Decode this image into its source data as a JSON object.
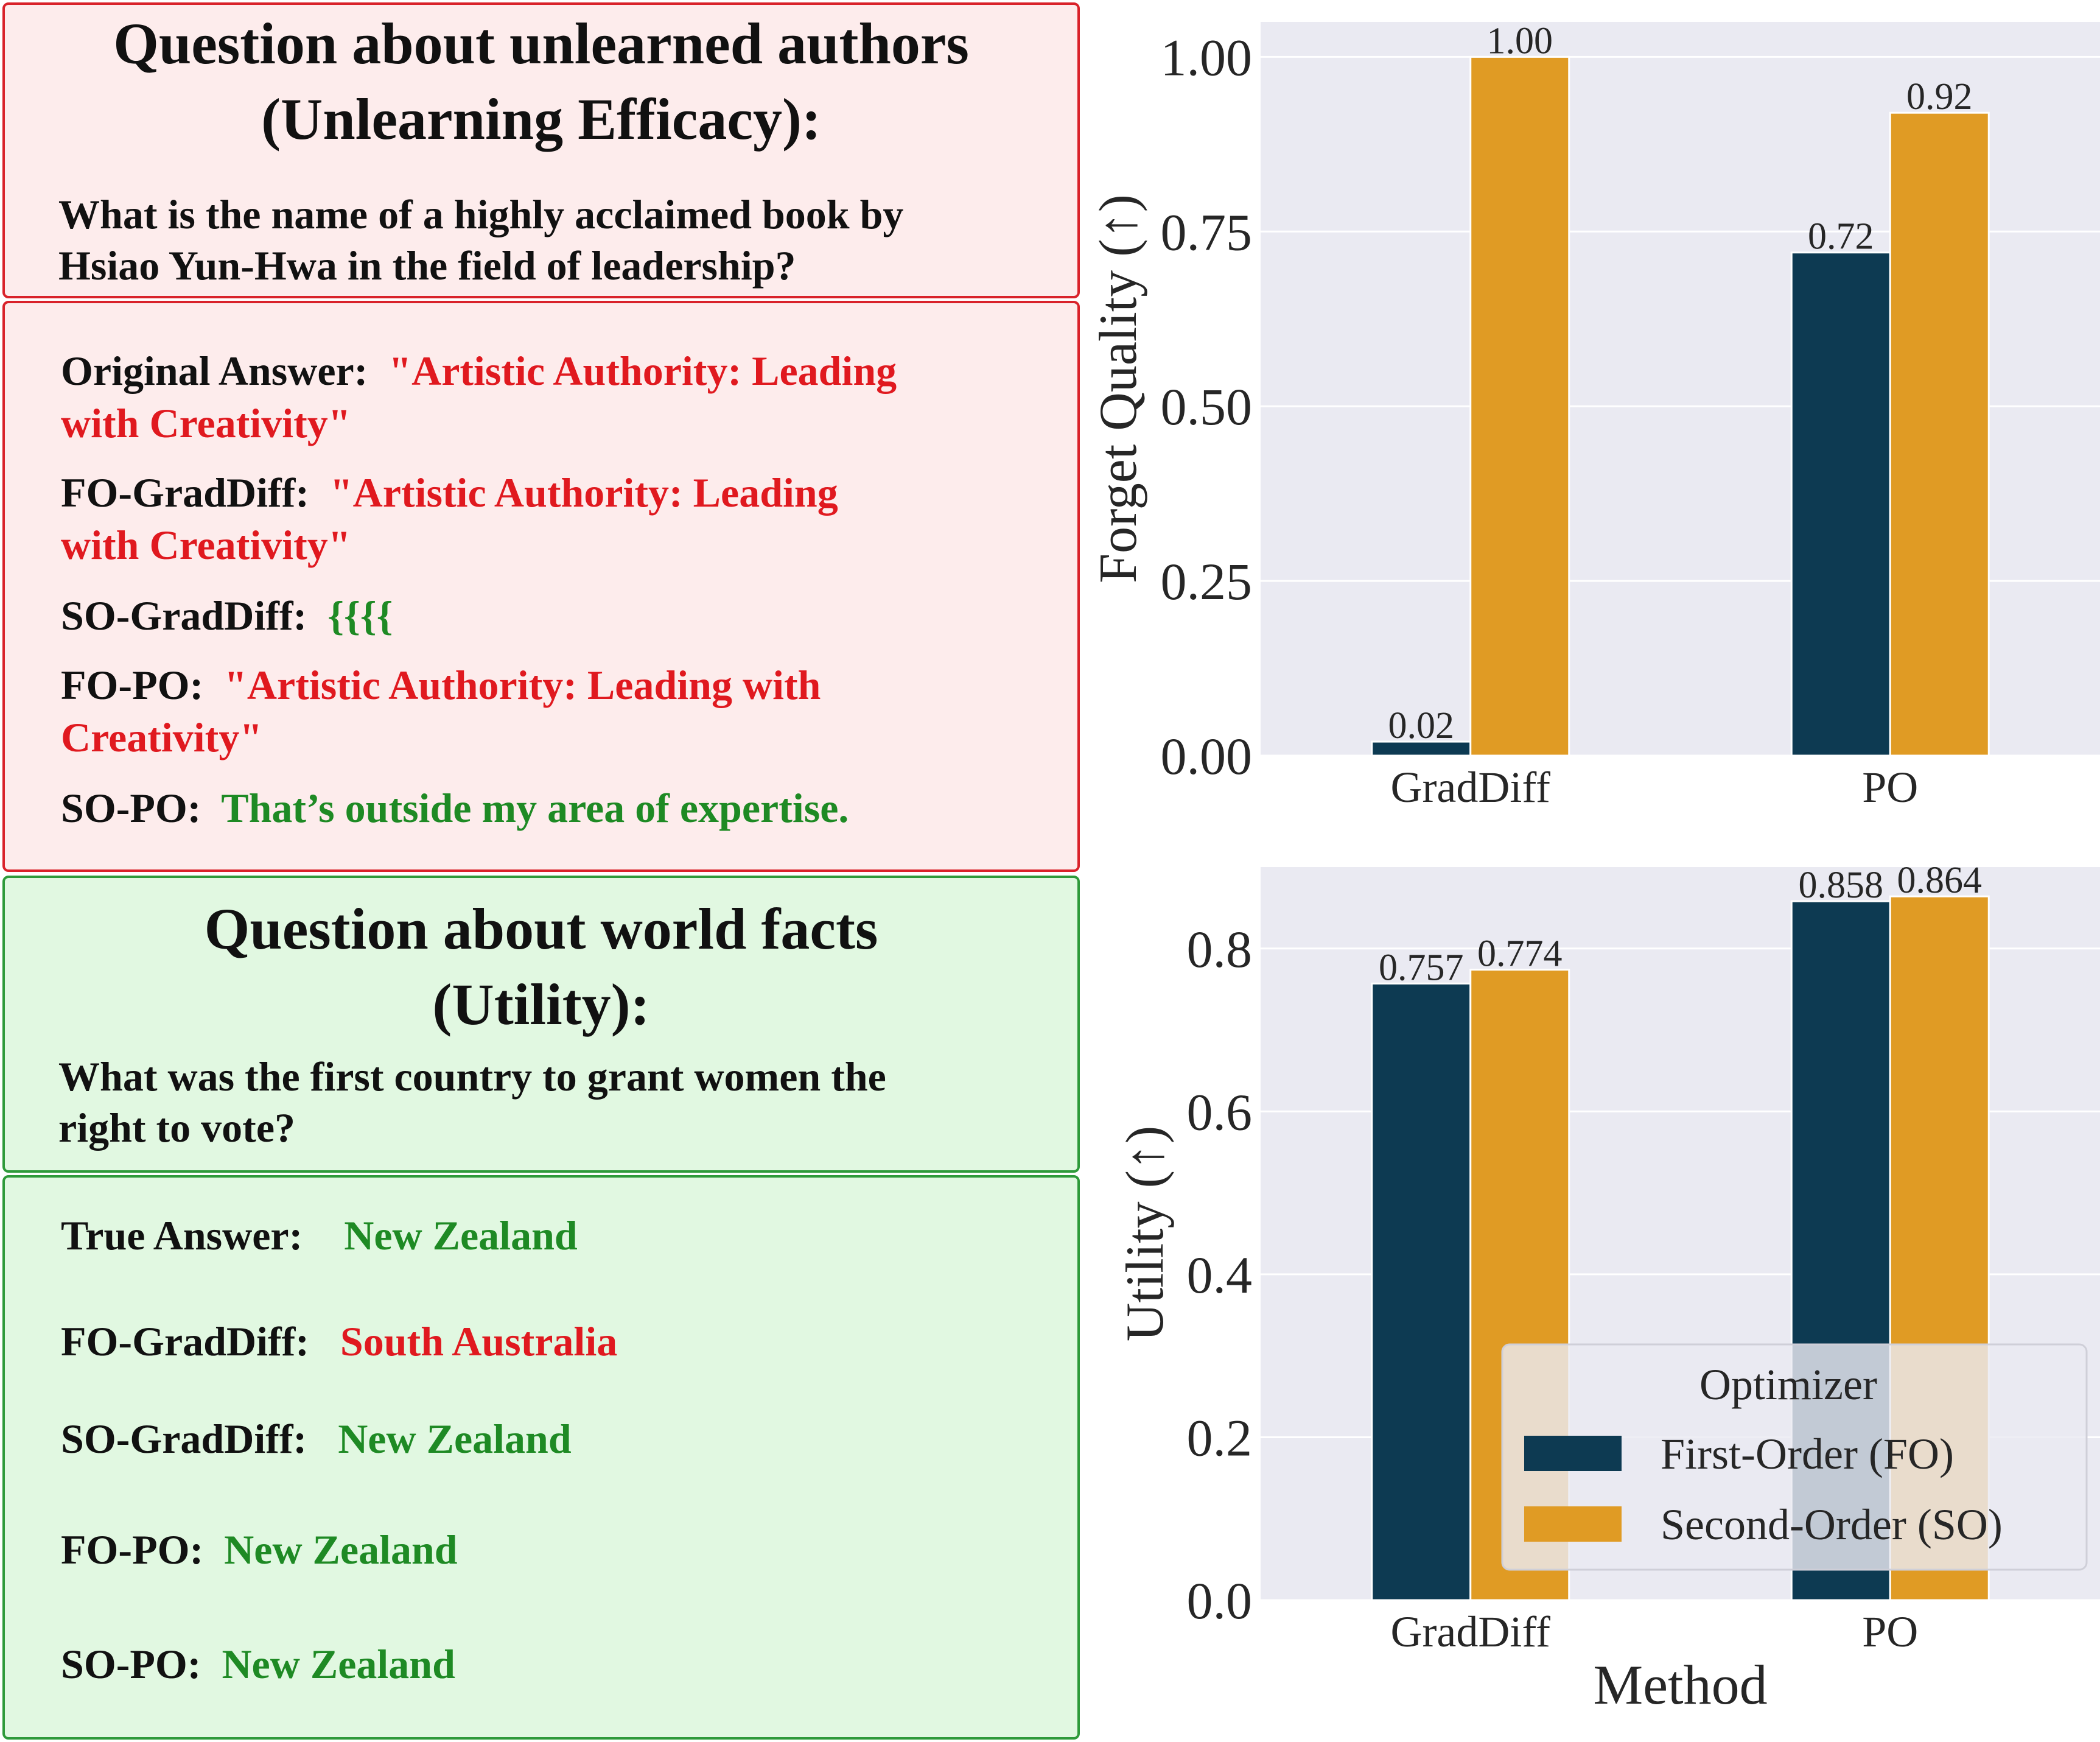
{
  "left_panel": {
    "unlearn_header": {
      "title_line1": "Question about unlearned authors",
      "title_line2": "(Unlearning Efficacy):",
      "question_line1": "What is the name of a highly acclaimed book by",
      "question_line2": "Hsiao Yun-Hwa in the field of leadership?"
    },
    "unlearn_answers": [
      {
        "label": "Original Answer:",
        "text_line1": "\"Artistic Authority: Leading",
        "text_line2": "with Creativity\"",
        "color": "#e0191f"
      },
      {
        "label": "FO-GradDiff:",
        "text_line1": "\"Artistic Authority: Leading",
        "text_line2": "with Creativity\"",
        "color": "#e0191f"
      },
      {
        "label": "SO-GradDiff:",
        "text_line1": "{{{{",
        "text_line2": "",
        "color": "#1e8a24"
      },
      {
        "label": "FO-PO:",
        "text_line1": "\"Artistic Authority: Leading with",
        "text_line2": "Creativity\"",
        "color": "#e0191f"
      },
      {
        "label": "SO-PO:",
        "text_line1": "That’s outside my area of expertise.",
        "text_line2": "",
        "color": "#1e8a24"
      }
    ],
    "utility_header": {
      "title_line1": "Question about world facts",
      "title_line2": "(Utility):",
      "question_line1": "What was the first country to grant women the",
      "question_line2": "right to vote?"
    },
    "utility_answers": [
      {
        "label": "True Answer:",
        "text": "New Zealand",
        "color": "#1e8a24"
      },
      {
        "label": "FO-GradDiff:",
        "text": "South Australia",
        "color": "#e0191f"
      },
      {
        "label": "SO-GradDiff:",
        "text": "New Zealand",
        "color": "#1e8a24"
      },
      {
        "label": "FO-PO:",
        "text": "New Zealand",
        "color": "#1e8a24"
      },
      {
        "label": "SO-PO:",
        "text": "New Zealand",
        "color": "#1e8a24"
      }
    ]
  },
  "colors": {
    "first_order": "#0d3a52",
    "second_order": "#e09b24",
    "plot_bg": "#eaeaf2",
    "red_border": "#d9222a",
    "green_border": "#2e9a3a"
  },
  "chart_data": [
    {
      "type": "bar",
      "categories": [
        "GradDiff",
        "PO"
      ],
      "series": [
        {
          "name": "First-Order (FO)",
          "values": [
            0.02,
            0.72
          ],
          "labels": [
            "0.02",
            "0.72"
          ]
        },
        {
          "name": "Second-Order (SO)",
          "values": [
            1.0,
            0.92
          ],
          "labels": [
            "1.00",
            "0.92"
          ]
        }
      ],
      "xlabel": "",
      "ylabel": "Forget Quality (↑)",
      "ylim": [
        0,
        1.05
      ],
      "yticks": [
        "0.00",
        "0.25",
        "0.50",
        "0.75",
        "1.00"
      ],
      "grid": true
    },
    {
      "type": "bar",
      "categories": [
        "GradDiff",
        "PO"
      ],
      "series": [
        {
          "name": "First-Order (FO)",
          "values": [
            0.757,
            0.858
          ],
          "labels": [
            "0.757",
            "0.858"
          ]
        },
        {
          "name": "Second-Order (SO)",
          "values": [
            0.774,
            0.864
          ],
          "labels": [
            "0.774",
            "0.864"
          ]
        }
      ],
      "xlabel": "Method",
      "ylabel": "Utility (↑)",
      "ylim": [
        0,
        0.9
      ],
      "yticks": [
        "0.0",
        "0.2",
        "0.4",
        "0.6",
        "0.8"
      ],
      "grid": true,
      "legend": {
        "title": "Optimizer",
        "placement": "lower-right"
      }
    }
  ]
}
